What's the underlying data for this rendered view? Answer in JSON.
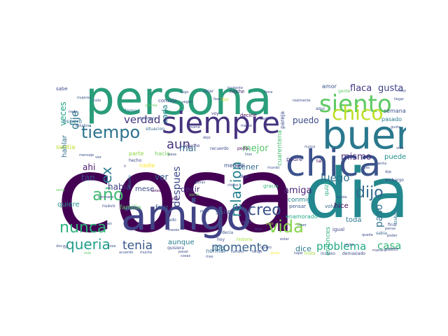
{
  "image": {
    "kind": "word cloud",
    "background": "#ffffff",
    "colormap": "viridis"
  },
  "words": [
    {
      "text": "cosa",
      "color": "#440154"
    },
    {
      "text": "persona",
      "color": "#2a9d7a"
    },
    {
      "text": "dia",
      "color": "#23888e"
    },
    {
      "text": "amigo",
      "color": "#414487"
    },
    {
      "text": "bueno",
      "color": "#2a788e"
    },
    {
      "text": "chica",
      "color": "#3b528b"
    },
    {
      "text": "siempre",
      "color": "#46337e"
    },
    {
      "text": "siento",
      "color": "#5ec962"
    },
    {
      "text": "chico",
      "color": "#bddf26"
    },
    {
      "text": "tiempo",
      "color": "#2c728e"
    },
    {
      "text": "año",
      "color": "#3fbc73"
    },
    {
      "text": "nunca",
      "color": "#2fb47c"
    },
    {
      "text": "relacion",
      "color": "#26828e"
    },
    {
      "text": "vida",
      "color": "#84d44b"
    },
    {
      "text": "creo",
      "color": "#3b528b"
    },
    {
      "text": "dijo",
      "color": "#31688e"
    },
    {
      "text": "queria",
      "color": "#1f9e89"
    },
    {
      "text": "tenia",
      "color": "#39568c"
    },
    {
      "text": "momento",
      "color": "#355f8d"
    },
    {
      "text": "aun",
      "color": "#46337e"
    },
    {
      "text": "verdad",
      "color": "#453781"
    },
    {
      "text": "dije",
      "color": "#2a788e"
    },
    {
      "text": "ex",
      "color": "#287d8e"
    },
    {
      "text": "despues",
      "color": "#3e4989"
    },
    {
      "text": "mismo",
      "color": "#482878"
    },
    {
      "text": "luego",
      "color": "#2d708e"
    },
    {
      "text": "amiga",
      "color": "#482475"
    },
    {
      "text": "flaca",
      "color": "#443983"
    },
    {
      "text": "gusta",
      "color": "#414487"
    },
    {
      "text": "casa",
      "color": "#35b779"
    },
    {
      "text": "problema",
      "color": "#22a884"
    },
    {
      "text": "paso",
      "color": "#2c728e"
    },
    {
      "text": "veces",
      "color": "#1fa187"
    },
    {
      "text": "mal",
      "color": "#31688e"
    },
    {
      "text": "mejor",
      "color": "#52c569"
    },
    {
      "text": "puedo",
      "color": "#3e4989"
    },
    {
      "text": "habia",
      "color": "#424086"
    },
    {
      "text": "ahi",
      "color": "#481a6c"
    },
    {
      "text": "tan",
      "color": "#3d4e8a"
    },
    {
      "text": "ver",
      "color": "#355f8d"
    },
    {
      "text": "decir",
      "color": "#46327e"
    },
    {
      "text": "tener",
      "color": "#31688e"
    },
    {
      "text": "hablar",
      "color": "#2e6e8e"
    },
    {
      "text": "cada",
      "color": "#25848e"
    },
    {
      "text": "dice",
      "color": "#2a788e"
    },
    {
      "text": "iba",
      "color": "#2c728e"
    },
    {
      "text": "aunque",
      "color": "#287c8e"
    },
    {
      "text": "salir",
      "color": "#3b528b"
    },
    {
      "text": "hice",
      "color": "#440154"
    },
    {
      "text": "toda",
      "color": "#2a788e"
    },
    {
      "text": "puede",
      "color": "#20928c"
    },
    {
      "text": "quiere",
      "color": "#21918c"
    },
    {
      "text": "mese",
      "color": "#3e4a89"
    },
    {
      "text": "familia",
      "color": "#5ec962"
    },
    {
      "text": "feliz",
      "color": "#38598c"
    },
    {
      "text": "entonces",
      "color": "#2fb47c"
    },
    {
      "text": "cuarentena",
      "color": "#44bf70"
    },
    {
      "text": "enamorado",
      "color": "#22a884"
    },
    {
      "text": "normal",
      "color": "#31688e"
    },
    {
      "text": "conmigo",
      "color": "#26828e"
    },
    {
      "text": "sentia",
      "color": "#bddf26"
    },
    {
      "text": "espero",
      "color": "#2c728e"
    },
    {
      "text": "amor",
      "color": "#3b528b"
    },
    {
      "text": "padre",
      "color": "#46337e"
    },
    {
      "text": "semana",
      "color": "#3b528b"
    },
    {
      "text": "pasado",
      "color": "#2a788e"
    },
    {
      "text": "pareja",
      "color": "#3e4989"
    },
    {
      "text": "parte",
      "color": "#90d743"
    },
    {
      "text": "hacia",
      "color": "#73d056"
    },
    {
      "text": "menos",
      "color": "#3b528b"
    },
    {
      "text": "nadie",
      "color": "#fde725"
    },
    {
      "text": "quiza",
      "color": "#22a884"
    },
    {
      "text": "volver",
      "color": "#31688e"
    },
    {
      "text": "gracia",
      "color": "#35b779"
    },
    {
      "text": "igual",
      "color": "#404688"
    },
    {
      "text": "pensar",
      "color": "#3b528b"
    },
    {
      "text": "consejo",
      "color": "#3e4989"
    },
    {
      "text": "noche",
      "color": "#482878"
    },
    {
      "text": "situacion",
      "color": "#31688e"
    },
    {
      "text": "forma",
      "color": "#2a788e"
    },
    {
      "text": "saber",
      "color": "#3e4989"
    },
    {
      "text": "sabia",
      "color": "#31688e"
    },
    {
      "text": "voy",
      "color": "#46337e"
    },
    {
      "text": "primera",
      "color": "#3b528b"
    },
    {
      "text": "decirle",
      "color": "#440154"
    },
    {
      "text": "dejar",
      "color": "#3b528b"
    },
    {
      "text": "mucho",
      "color": "#46337e"
    },
    {
      "text": "recuerdo",
      "color": "#3e4989"
    },
    {
      "text": "podia",
      "color": "#440154"
    },
    {
      "text": "hecho",
      "color": "#3e4989"
    },
    {
      "text": "miedo",
      "color": "#2c728e"
    },
    {
      "text": "serio",
      "color": "#5ec962"
    },
    {
      "text": "nuevo",
      "color": "#3e4989"
    },
    {
      "text": "decia",
      "color": "#3b528b"
    },
    {
      "text": "quisiera",
      "color": "#3e4989"
    },
    {
      "text": "junto",
      "color": "#440154"
    },
    {
      "text": "lado",
      "color": "#3b528b"
    },
    {
      "text": "hoy",
      "color": "#3e4989"
    },
    {
      "text": "historia",
      "color": "#a0da39"
    },
    {
      "text": "final",
      "color": "#3b528b"
    },
    {
      "text": "embargo",
      "color": "#3e4989"
    },
    {
      "text": "trabajo",
      "color": "#2c728e"
    },
    {
      "text": "incluso",
      "color": "#3b528b"
    },
    {
      "text": "demasiado",
      "color": "#3e4989"
    },
    {
      "text": "triste",
      "color": "#a0da39"
    },
    {
      "text": "mayor",
      "color": "#3b528b"
    },
    {
      "text": "sabe",
      "color": "#3e4989"
    },
    {
      "text": "aqui",
      "color": "#3b528b"
    },
    {
      "text": "gente",
      "color": "#5ec962"
    },
    {
      "text": "realmente",
      "color": "#3e4989"
    },
    {
      "text": "cuenta",
      "color": "#3b528b"
    },
    {
      "text": "ultimo",
      "color": "#3e4989"
    },
    {
      "text": "santi",
      "color": "#3b528b"
    },
    {
      "text": "tal",
      "color": "#440154"
    },
    {
      "text": "digo",
      "color": "#3e4989"
    },
    {
      "text": "mujeres",
      "color": "#3b528b"
    },
    {
      "text": "favor",
      "color": "#3e4989"
    },
    {
      "text": "piensa",
      "color": "#5ec962"
    },
    {
      "text": "perfecto",
      "color": "#3e4989"
    },
    {
      "text": "llegar",
      "color": "#3b528b"
    },
    {
      "text": "poder",
      "color": "#3e4989"
    },
    {
      "text": "pense",
      "color": "#3b528b"
    },
    {
      "text": "usted",
      "color": "#440154"
    },
    {
      "text": "pasar",
      "color": "#3e4989"
    },
    {
      "text": "tipo",
      "color": "#bddf26"
    },
    {
      "text": "pelo",
      "color": "#a0da39"
    },
    {
      "text": "bastante",
      "color": "#3b528b"
    },
    {
      "text": "fin",
      "color": "#3e4989"
    },
    {
      "text": "mensaje",
      "color": "#3b528b"
    },
    {
      "text": "sola",
      "color": "#5ec962"
    },
    {
      "text": "cosas",
      "color": "#3e4989"
    },
    {
      "text": "dos",
      "color": "#3b528b"
    },
    {
      "text": "puso",
      "color": "#fde725"
    },
    {
      "text": "lugar",
      "color": "#3e4989"
    },
    {
      "text": "cambio",
      "color": "#3b528b"
    },
    {
      "text": "pasa",
      "color": "#3e4989"
    },
    {
      "text": "hizo",
      "color": "#3b528b"
    },
    {
      "text": "meses",
      "color": "#3e4989"
    },
    {
      "text": "ganas",
      "color": "#3b528b"
    },
    {
      "text": "chicos",
      "color": "#3e4989"
    },
    {
      "text": "vez",
      "color": "#3b528b"
    },
    {
      "text": "casi",
      "color": "#3e4989"
    },
    {
      "text": "saludos",
      "color": "#3b528b"
    },
    {
      "text": "hermano",
      "color": "#3e4989"
    },
    {
      "text": "ir",
      "color": "#3b528b"
    },
    {
      "text": "seguir",
      "color": "#3e4989"
    },
    {
      "text": "hago",
      "color": "#3b528b"
    },
    {
      "text": "seria",
      "color": "#5ec962"
    },
    {
      "text": "dejo",
      "color": "#3e4989"
    },
    {
      "text": "pude",
      "color": "#3b528b"
    },
    {
      "text": "mama",
      "color": "#3e4989"
    },
    {
      "text": "pues",
      "color": "#3b528b"
    },
    {
      "text": "queda",
      "color": "#3e4989"
    },
    {
      "text": "creer",
      "color": "#3b528b"
    },
    {
      "text": "hora",
      "color": "#3e4989"
    },
    {
      "text": "mas",
      "color": "#3b528b"
    },
    {
      "text": "nada",
      "color": "#3e4989"
    },
    {
      "text": "todo",
      "color": "#3b528b"
    },
    {
      "text": "manera",
      "color": "#3e4989"
    },
    {
      "text": "nunca",
      "color": "#3b528b"
    },
    {
      "text": "mucha",
      "color": "#3e4989"
    },
    {
      "text": "acuerdo",
      "color": "#3b528b"
    },
    {
      "text": "quiero",
      "color": "#3e4989"
    },
    {
      "text": "unico",
      "color": "#3b528b"
    },
    {
      "text": "estar",
      "color": "#3e4989"
    },
    {
      "text": "tengo",
      "color": "#3b528b"
    },
    {
      "text": "vida",
      "color": "#3e4989"
    },
    {
      "text": "gusta",
      "color": "#3b528b"
    },
    {
      "text": "dije",
      "color": "#3e4989"
    },
    {
      "text": "mundo",
      "color": "#3b528b"
    },
    {
      "text": "hice",
      "color": "#3e4989"
    },
    {
      "text": "cosa",
      "color": "#3b528b"
    },
    {
      "text": "buena",
      "color": "#3e4989"
    },
    {
      "text": "ayuda",
      "color": "#3b528b"
    }
  ]
}
